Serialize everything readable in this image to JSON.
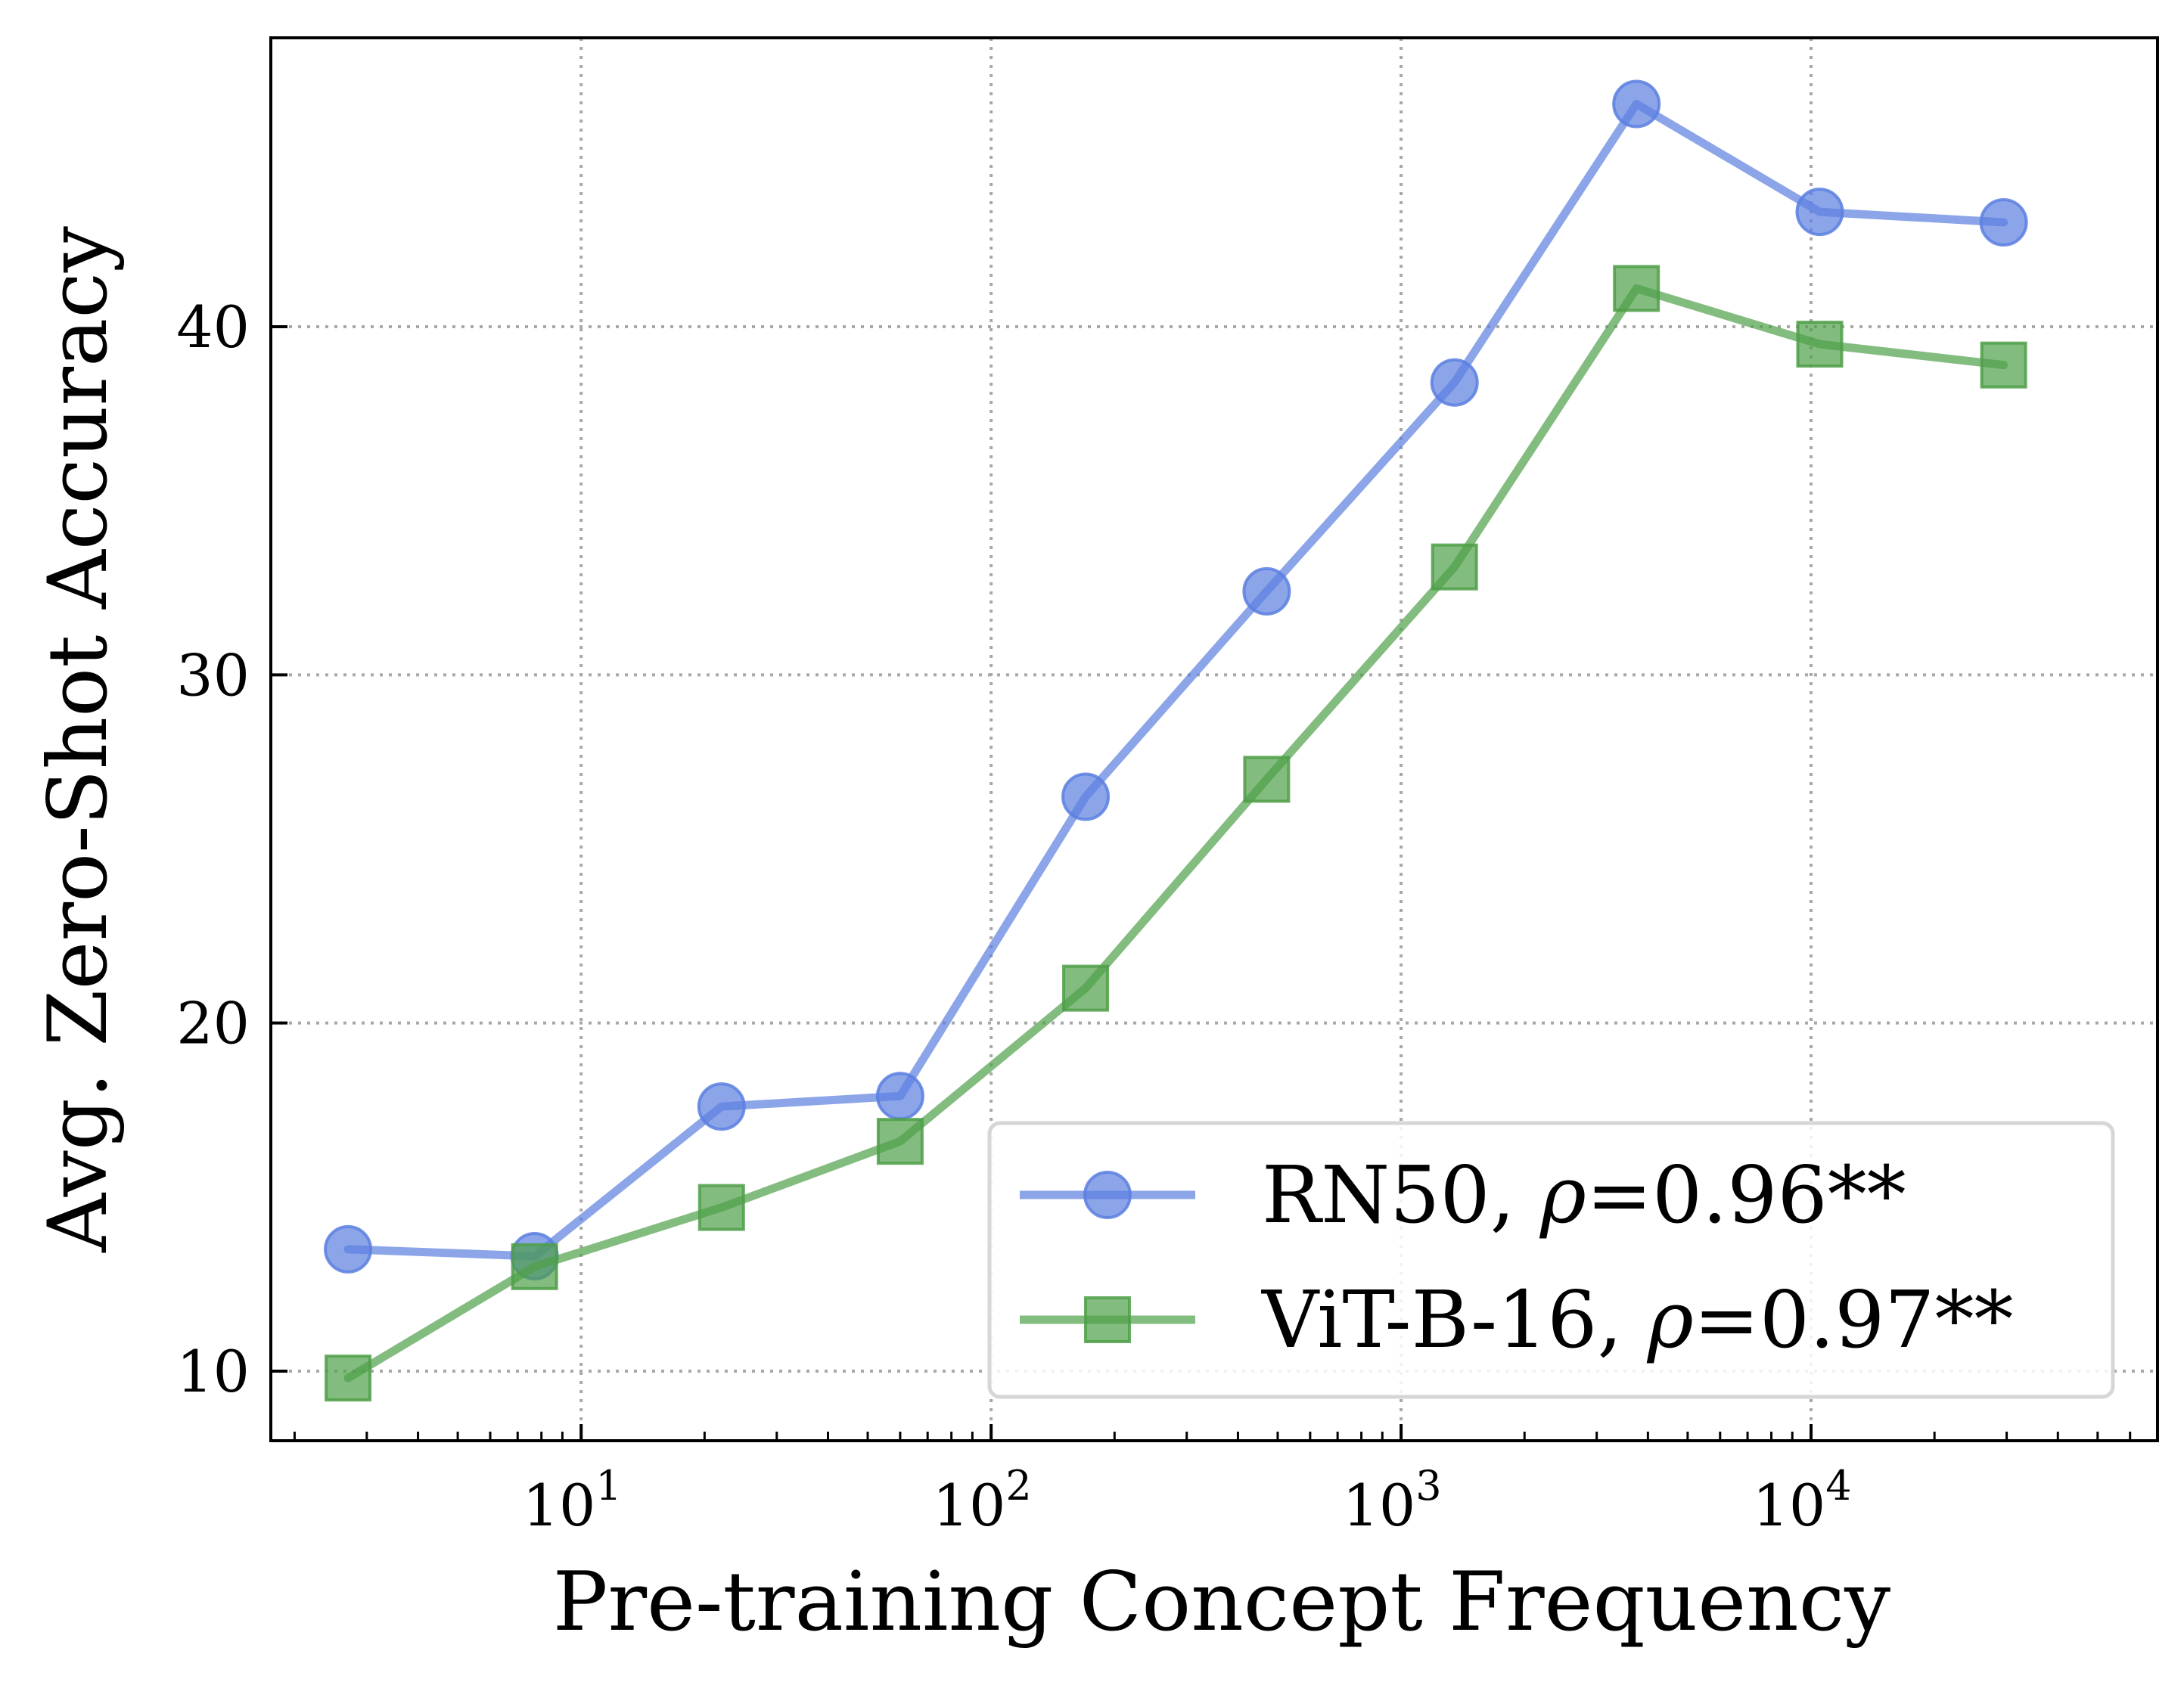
{
  "chart_data": {
    "type": "line",
    "title": "",
    "xlabel": "Pre-training Concept Frequency",
    "ylabel": "Avg. Zero-Shot Accuracy",
    "xscale": "log",
    "xlim": [
      1.75,
      70000
    ],
    "ylim": [
      8,
      48.3
    ],
    "x_ticks": [
      {
        "value": 10,
        "base": "10",
        "exp": "1"
      },
      {
        "value": 100,
        "base": "10",
        "exp": "2"
      },
      {
        "value": 1000,
        "base": "10",
        "exp": "3"
      },
      {
        "value": 10000,
        "base": "10",
        "exp": "4"
      }
    ],
    "y_ticks": [
      10,
      20,
      30,
      40
    ],
    "grid": true,
    "legend_position": "lower-right",
    "series": [
      {
        "name": "RN50, ρ=0.96**",
        "name_prefix": "RN50, ",
        "name_rho": "ρ",
        "name_suffix": "=0.96**",
        "color": "#5b7fe0",
        "marker": "circle",
        "x": [
          2.7,
          7.7,
          22,
          60,
          170,
          470,
          1350,
          3750,
          10500,
          29500
        ],
        "y": [
          13.5,
          13.3,
          17.6,
          17.9,
          26.5,
          32.4,
          38.4,
          46.4,
          43.3,
          43.0
        ]
      },
      {
        "name": "ViT-B-16, ρ=0.97**",
        "name_prefix": "ViT-B-16, ",
        "name_rho": "ρ",
        "name_suffix": "=0.97**",
        "color": "#4f9f48",
        "marker": "square",
        "x": [
          2.7,
          7.7,
          22,
          60,
          170,
          470,
          1350,
          3750,
          10500,
          29500
        ],
        "y": [
          9.8,
          13.0,
          14.7,
          16.6,
          21.0,
          27.0,
          33.1,
          41.1,
          39.5,
          38.9
        ]
      }
    ]
  }
}
